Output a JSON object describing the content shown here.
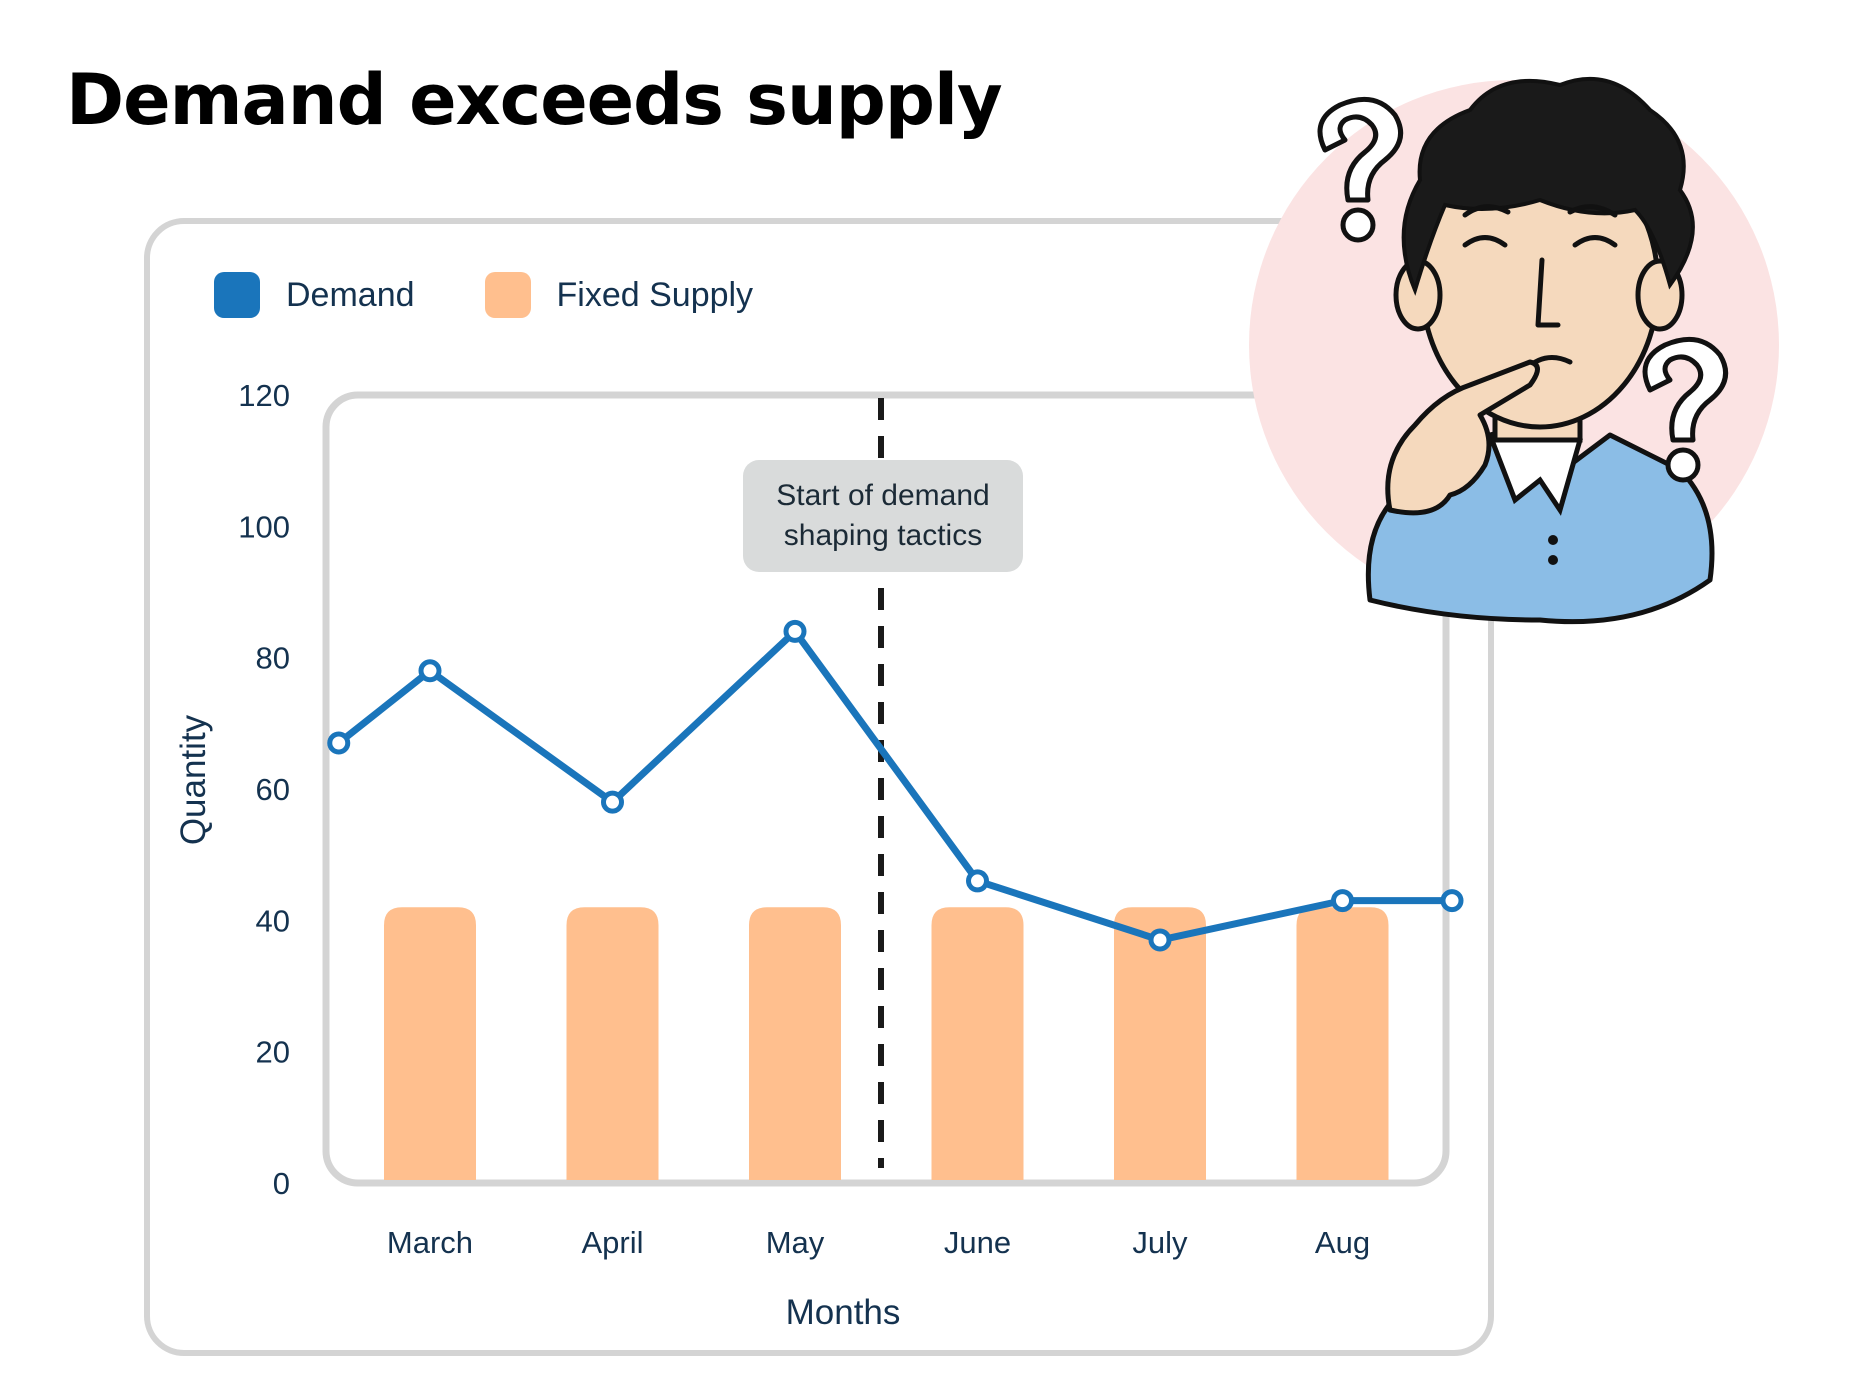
{
  "title": "Demand exceeds supply",
  "legend": [
    {
      "label": "Demand",
      "color": "#1a75bb"
    },
    {
      "label": "Fixed Supply",
      "color": "#ffbf8e"
    }
  ],
  "annotation": "Start of demand shaping tactics",
  "colors": {
    "demand": "#1a75bb",
    "supply": "#ffbf8e",
    "frame": "#d4d4d4",
    "annotation_bg": "#d9dbdb",
    "text": "#14324f"
  },
  "illustration": {
    "icon": "confused-person-with-question-marks-icon",
    "background_color": "#fbe3e3",
    "shirt_color": "#8bbde6",
    "skin_color": "#f5d9bd",
    "hair_color": "#1a1a1a"
  },
  "chart_data": {
    "type": "bar+line",
    "xlabel": "Months",
    "ylabel": "Quantity",
    "categories": [
      "March",
      "April",
      "May",
      "June",
      "July",
      "Aug"
    ],
    "ylim": [
      0,
      120
    ],
    "yticks": [
      0,
      20,
      40,
      60,
      80,
      100,
      120
    ],
    "grid": false,
    "legend_position": "top-left",
    "series": [
      {
        "name": "Fixed Supply",
        "type": "bar",
        "values": [
          42,
          42,
          42,
          42,
          42,
          42
        ]
      },
      {
        "name": "Demand",
        "type": "line",
        "x": [
          0,
          0.5,
          1.5,
          2.5,
          3.5,
          4.5,
          5.5,
          6.1
        ],
        "values": [
          67,
          78,
          58,
          84,
          46,
          37,
          43,
          43
        ]
      }
    ],
    "annotations": [
      {
        "text": "Start of demand shaping tactics",
        "x_between": [
          "May",
          "June"
        ],
        "line_style": "dashed"
      }
    ]
  }
}
